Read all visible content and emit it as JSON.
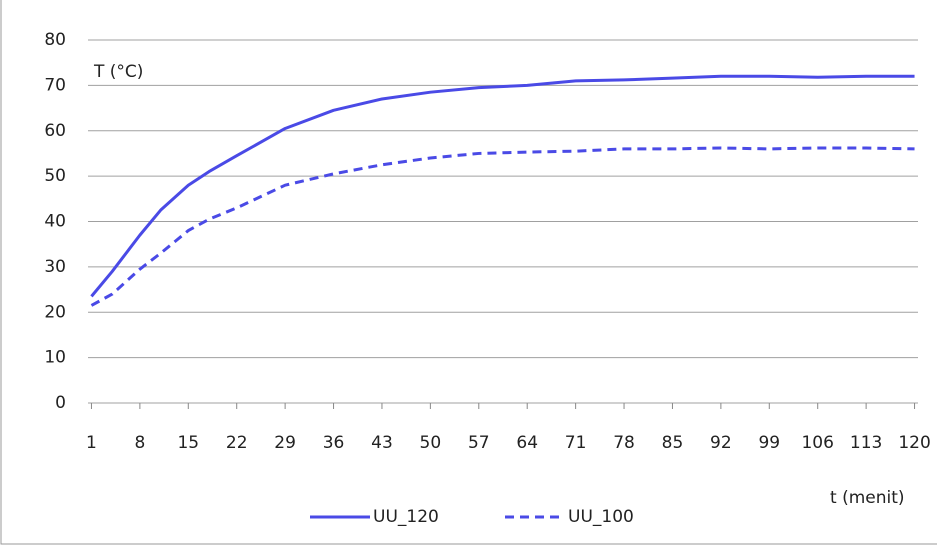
{
  "chart_data": {
    "type": "line",
    "y_label": "T (°C)",
    "x_label": "t (menit)",
    "x": [
      1,
      4,
      8,
      11,
      15,
      18,
      22,
      29,
      36,
      43,
      50,
      57,
      64,
      71,
      78,
      85,
      92,
      99,
      106,
      113,
      120
    ],
    "series": [
      {
        "name": "UU_120",
        "color": "#4a4ae6",
        "dash": "solid",
        "values": [
          23.5,
          29,
          37,
          42.5,
          48,
          51,
          54.5,
          60.5,
          64.5,
          67,
          68.5,
          69.5,
          70,
          71,
          71.2,
          71.6,
          72,
          72,
          71.8,
          72,
          72
        ]
      },
      {
        "name": "UU_100",
        "color": "#4a4ae6",
        "dash": "dashed",
        "values": [
          21.5,
          24,
          29.5,
          33,
          38,
          40.5,
          43,
          48,
          50.5,
          52.5,
          54,
          55,
          55.3,
          55.5,
          56,
          56,
          56.2,
          56,
          56.2,
          56.2,
          56
        ]
      }
    ],
    "xlim": [
      0.5,
      120.5
    ],
    "xticks": [
      1,
      8,
      15,
      22,
      29,
      36,
      43,
      50,
      57,
      64,
      71,
      78,
      85,
      92,
      99,
      106,
      113,
      120
    ],
    "ylim": [
      0,
      80
    ],
    "yticks": [
      0,
      10,
      20,
      30,
      40,
      50,
      60,
      70,
      80
    ],
    "grid": true,
    "legend": "bottom"
  }
}
